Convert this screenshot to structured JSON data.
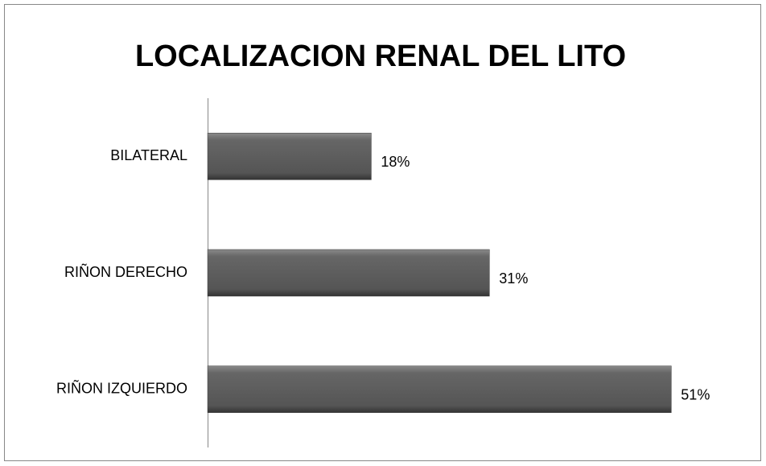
{
  "chart_data": {
    "type": "barh",
    "title": "LOCALIZACION RENAL DEL LITO",
    "categories": [
      "BILATERAL",
      "RIÑON DERECHO",
      "RIÑON IZQUIERDO"
    ],
    "values": [
      18,
      31,
      51
    ],
    "value_labels": [
      "18%",
      "31%",
      "51%"
    ],
    "color": "#5a5a5a",
    "xlim": [
      0,
      60
    ]
  }
}
